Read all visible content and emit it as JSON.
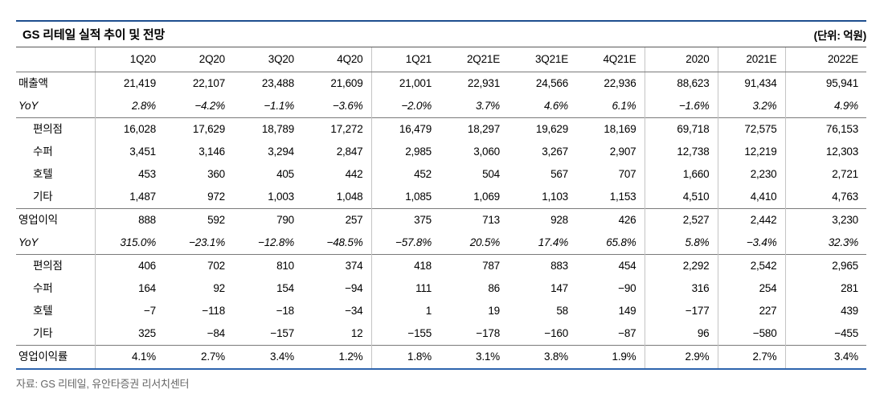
{
  "title": "GS 리테일 실적 추이 및 전망",
  "unit_label": "(단위: 억원)",
  "source": "자료: GS 리테일, 유안타증권 리서치센터",
  "colors": {
    "top_rule": "#1e4e8f",
    "bottom_rule": "#2e64ad",
    "group_line": "#7a7a7a",
    "column_line": "#c4c4c4",
    "source_text": "#666666"
  },
  "chart_data": {
    "type": "table",
    "title": "GS 리테일 실적 추이 및 전망",
    "unit": "억원",
    "columns": [
      "1Q20",
      "2Q20",
      "3Q20",
      "4Q20",
      "1Q21",
      "2Q21E",
      "3Q21E",
      "4Q21E",
      "2020",
      "2021E",
      "2022E"
    ],
    "rows": [
      {
        "label": "매출액",
        "style": "main",
        "group_start": false,
        "values": [
          "21,419",
          "22,107",
          "23,488",
          "21,609",
          "21,001",
          "22,931",
          "24,566",
          "22,936",
          "88,623",
          "91,434",
          "95,941"
        ]
      },
      {
        "label": "YoY",
        "style": "yoy",
        "group_start": false,
        "values": [
          "2.8%",
          "−4.2%",
          "−1.1%",
          "−3.6%",
          "−2.0%",
          "3.7%",
          "4.6%",
          "6.1%",
          "−1.6%",
          "3.2%",
          "4.9%"
        ]
      },
      {
        "label": "편의점",
        "style": "sub",
        "group_start": true,
        "values": [
          "16,028",
          "17,629",
          "18,789",
          "17,272",
          "16,479",
          "18,297",
          "19,629",
          "18,169",
          "69,718",
          "72,575",
          "76,153"
        ]
      },
      {
        "label": "수퍼",
        "style": "sub",
        "group_start": false,
        "values": [
          "3,451",
          "3,146",
          "3,294",
          "2,847",
          "2,985",
          "3,060",
          "3,267",
          "2,907",
          "12,738",
          "12,219",
          "12,303"
        ]
      },
      {
        "label": "호텔",
        "style": "sub",
        "group_start": false,
        "values": [
          "453",
          "360",
          "405",
          "442",
          "452",
          "504",
          "567",
          "707",
          "1,660",
          "2,230",
          "2,721"
        ]
      },
      {
        "label": "기타",
        "style": "sub",
        "group_start": false,
        "values": [
          "1,487",
          "972",
          "1,003",
          "1,048",
          "1,085",
          "1,069",
          "1,103",
          "1,153",
          "4,510",
          "4,410",
          "4,763"
        ]
      },
      {
        "label": "영업이익",
        "style": "main",
        "group_start": true,
        "values": [
          "888",
          "592",
          "790",
          "257",
          "375",
          "713",
          "928",
          "426",
          "2,527",
          "2,442",
          "3,230"
        ]
      },
      {
        "label": "YoY",
        "style": "yoy",
        "group_start": false,
        "values": [
          "315.0%",
          "−23.1%",
          "−12.8%",
          "−48.5%",
          "−57.8%",
          "20.5%",
          "17.4%",
          "65.8%",
          "5.8%",
          "−3.4%",
          "32.3%"
        ]
      },
      {
        "label": "편의점",
        "style": "sub",
        "group_start": true,
        "values": [
          "406",
          "702",
          "810",
          "374",
          "418",
          "787",
          "883",
          "454",
          "2,292",
          "2,542",
          "2,965"
        ]
      },
      {
        "label": "수퍼",
        "style": "sub",
        "group_start": false,
        "values": [
          "164",
          "92",
          "154",
          "−94",
          "111",
          "86",
          "147",
          "−90",
          "316",
          "254",
          "281"
        ]
      },
      {
        "label": "호텔",
        "style": "sub",
        "group_start": false,
        "values": [
          "−7",
          "−118",
          "−18",
          "−34",
          "1",
          "19",
          "58",
          "149",
          "−177",
          "227",
          "439"
        ]
      },
      {
        "label": "기타",
        "style": "sub",
        "group_start": false,
        "values": [
          "325",
          "−84",
          "−157",
          "12",
          "−155",
          "−178",
          "−160",
          "−87",
          "96",
          "−580",
          "−455"
        ]
      },
      {
        "label": "영업이익률",
        "style": "main",
        "group_start": true,
        "values": [
          "4.1%",
          "2.7%",
          "3.4%",
          "1.2%",
          "1.8%",
          "3.1%",
          "3.8%",
          "1.9%",
          "2.9%",
          "2.7%",
          "3.4%"
        ]
      }
    ]
  }
}
